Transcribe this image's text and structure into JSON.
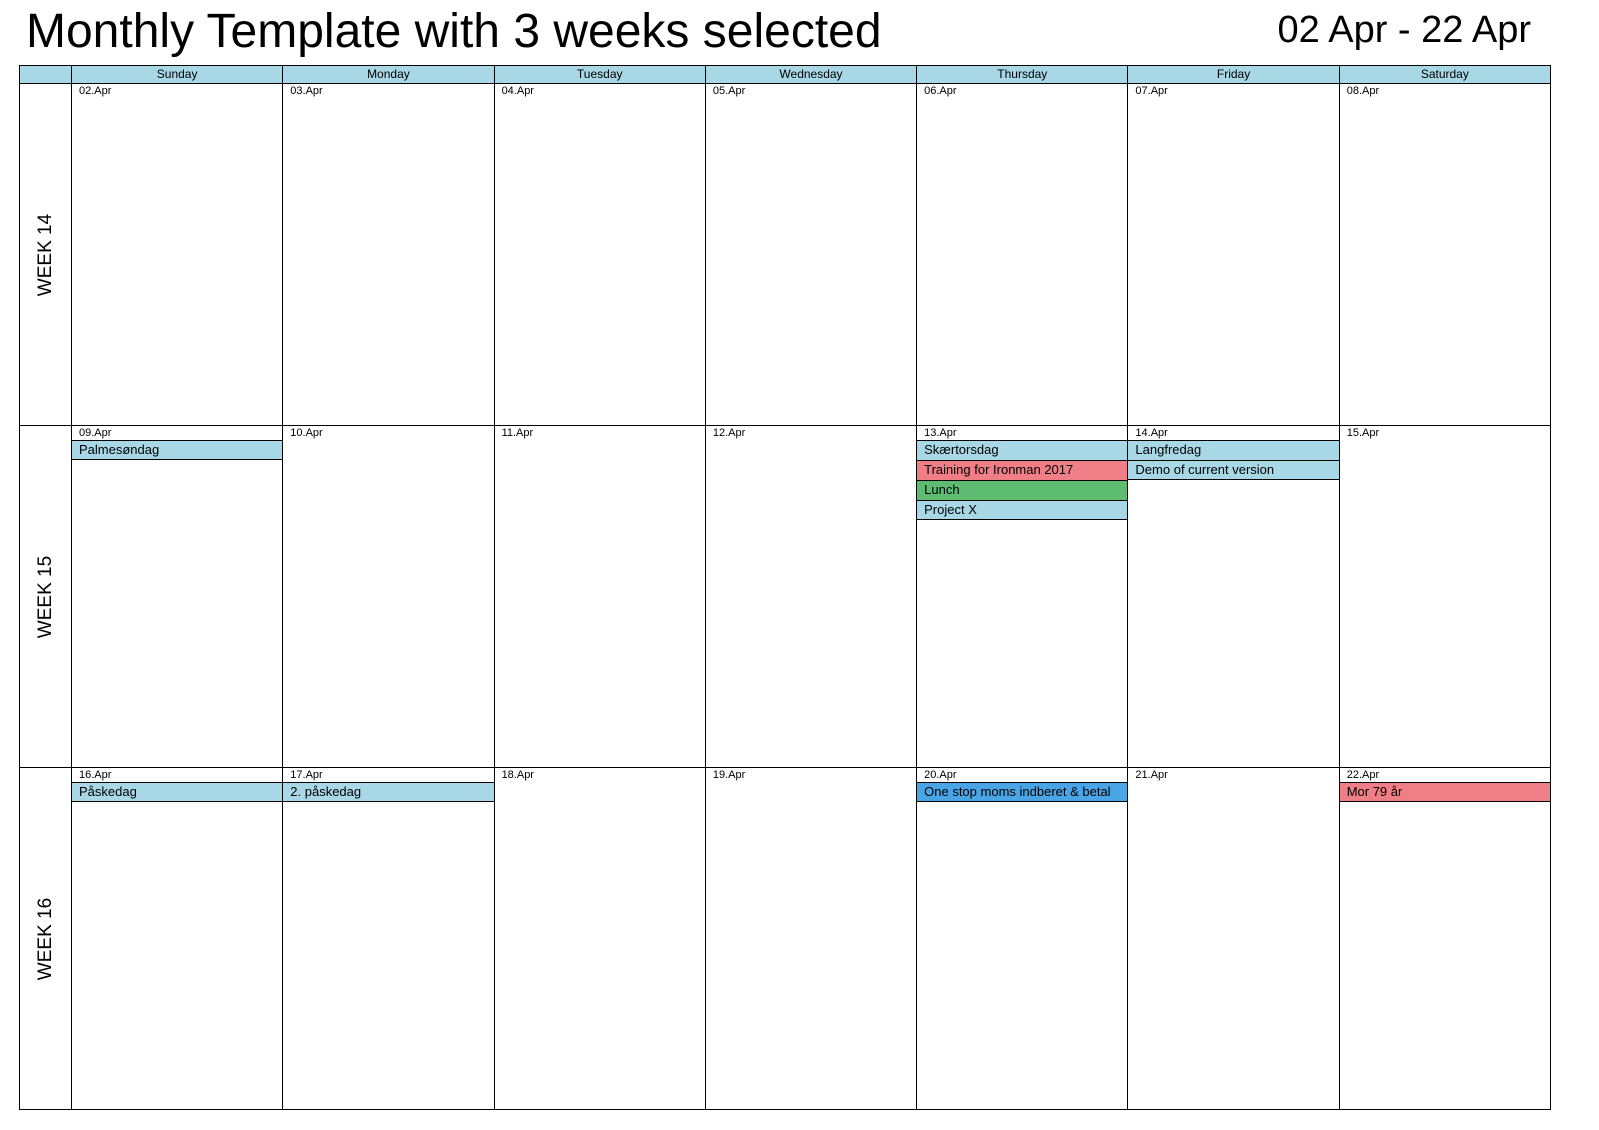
{
  "title": "Monthly Template with 3 weeks selected",
  "date_range": "02 Apr - 22 Apr",
  "colors": {
    "header": "#a8d8e6",
    "event_blue": "#a8d8e6",
    "event_red": "#f07e86",
    "event_green": "#5dbb72",
    "event_strong_blue": "#4aa5e6"
  },
  "days": [
    "Sunday",
    "Monday",
    "Tuesday",
    "Wednesday",
    "Thursday",
    "Friday",
    "Saturday"
  ],
  "weeks": [
    {
      "label": "WEEK 14",
      "cells": [
        {
          "date": "02.Apr",
          "events": []
        },
        {
          "date": "03.Apr",
          "events": []
        },
        {
          "date": "04.Apr",
          "events": []
        },
        {
          "date": "05.Apr",
          "events": []
        },
        {
          "date": "06.Apr",
          "events": []
        },
        {
          "date": "07.Apr",
          "events": []
        },
        {
          "date": "08.Apr",
          "events": []
        }
      ]
    },
    {
      "label": "WEEK 15",
      "cells": [
        {
          "date": "09.Apr",
          "events": [
            {
              "title": "Palmesøndag",
              "color": "#a8d8e6"
            }
          ]
        },
        {
          "date": "10.Apr",
          "events": []
        },
        {
          "date": "11.Apr",
          "events": []
        },
        {
          "date": "12.Apr",
          "events": []
        },
        {
          "date": "13.Apr",
          "events": [
            {
              "title": "Skærtorsdag",
              "color": "#a8d8e6"
            },
            {
              "title": "Training for Ironman 2017",
              "color": "#f07e86"
            },
            {
              "title": "Lunch",
              "color": "#5dbb72"
            },
            {
              "title": "Project X",
              "color": "#a8d8e6"
            }
          ]
        },
        {
          "date": "14.Apr",
          "events": [
            {
              "title": "Langfredag",
              "color": "#a8d8e6"
            },
            {
              "title": "Demo of current version",
              "color": "#a8d8e6"
            }
          ]
        },
        {
          "date": "15.Apr",
          "events": []
        }
      ]
    },
    {
      "label": "WEEK 16",
      "cells": [
        {
          "date": "16.Apr",
          "events": [
            {
              "title": "Påskedag",
              "color": "#a8d8e6"
            }
          ]
        },
        {
          "date": "17.Apr",
          "events": [
            {
              "title": "2. påskedag",
              "color": "#a8d8e6"
            }
          ]
        },
        {
          "date": "18.Apr",
          "events": []
        },
        {
          "date": "19.Apr",
          "events": []
        },
        {
          "date": "20.Apr",
          "events": [
            {
              "title": "One stop moms indberet & betal",
              "color": "#4aa5e6"
            }
          ]
        },
        {
          "date": "21.Apr",
          "events": []
        },
        {
          "date": "22.Apr",
          "events": [
            {
              "title": "Mor 79 år",
              "color": "#f07e86"
            }
          ]
        }
      ]
    }
  ]
}
